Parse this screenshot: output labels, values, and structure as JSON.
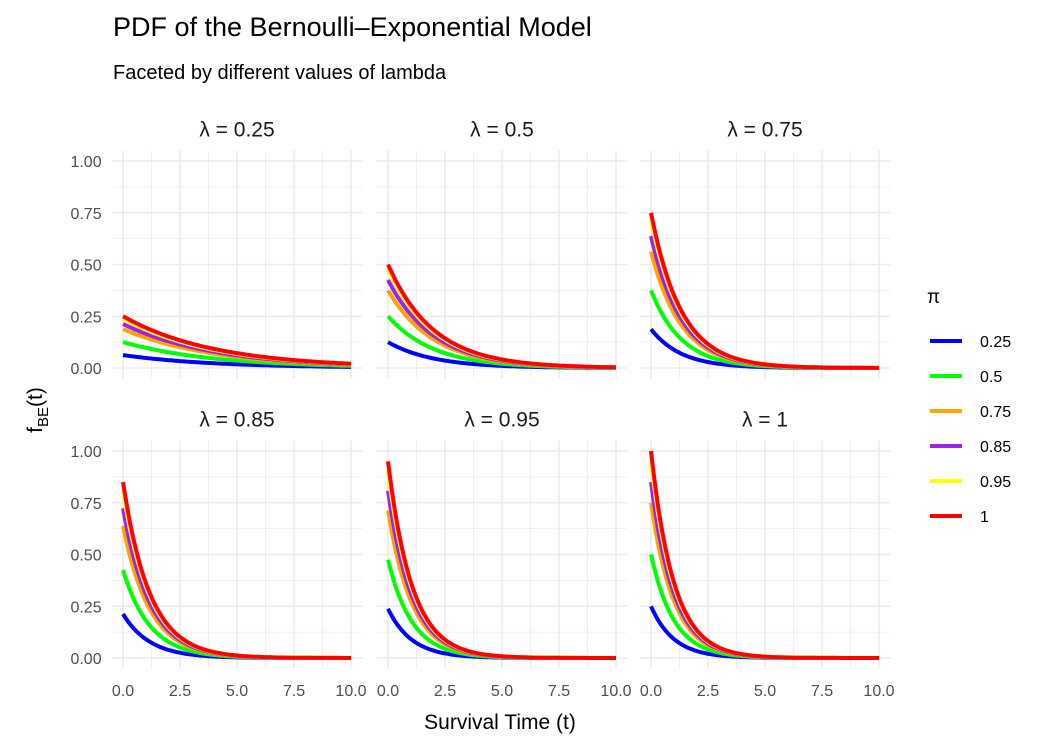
{
  "chart_data": {
    "type": "line",
    "title": "PDF of the Bernoulli–Exponential Model",
    "subtitle": "Faceted by different values of lambda",
    "xlabel": "Survival Time (t)",
    "ylabel_main": "f",
    "ylabel_sub": "BE",
    "ylabel_tail": "(t)",
    "xlim": [
      0,
      10
    ],
    "ylim": [
      0,
      1
    ],
    "x_ticks": [
      "0.0",
      "2.5",
      "5.0",
      "7.5",
      "10.0"
    ],
    "y_ticks": [
      "0.00",
      "0.25",
      "0.50",
      "0.75",
      "1.00"
    ],
    "grid": true,
    "legend": {
      "title": "π",
      "position": "right",
      "entries": [
        "0.25",
        "0.5",
        "0.75",
        "0.85",
        "0.95",
        "1"
      ]
    },
    "facets": [
      {
        "label": "λ = 0.25",
        "lambda": 0.25
      },
      {
        "label": "λ = 0.5",
        "lambda": 0.5
      },
      {
        "label": "λ = 0.75",
        "lambda": 0.75
      },
      {
        "label": "λ = 0.85",
        "lambda": 0.85
      },
      {
        "label": "λ = 0.95",
        "lambda": 0.95
      },
      {
        "label": "λ = 1",
        "lambda": 1
      }
    ],
    "series": [
      {
        "name": "0.25",
        "pi": 0.25,
        "color": "#0000FF"
      },
      {
        "name": "0.5",
        "pi": 0.5,
        "color": "#00FF00"
      },
      {
        "name": "0.75",
        "pi": 0.75,
        "color": "#FFA500"
      },
      {
        "name": "0.85",
        "pi": 0.85,
        "color": "#A020F0"
      },
      {
        "name": "0.95",
        "pi": 0.95,
        "color": "#FFFF00"
      },
      {
        "name": "1",
        "pi": 1,
        "color": "#FF0000"
      }
    ],
    "x_step": 0.1
  }
}
